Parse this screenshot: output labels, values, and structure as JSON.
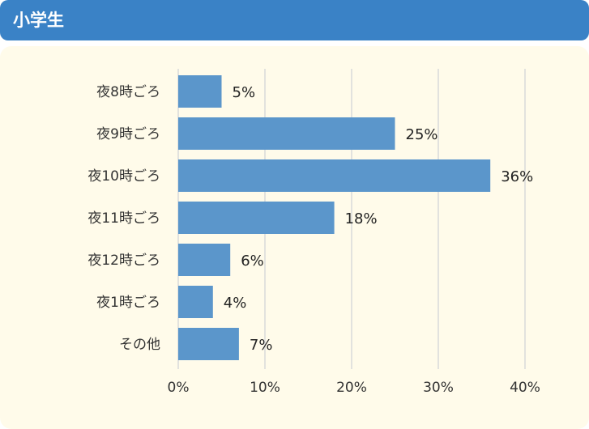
{
  "header": {
    "title": "小学生"
  },
  "chart_data": {
    "type": "bar",
    "orientation": "horizontal",
    "categories": [
      "夜8時ごろ",
      "夜9時ごろ",
      "夜10時ごろ",
      "夜11時ごろ",
      "夜12時ごろ",
      "夜1時ごろ",
      "その他"
    ],
    "values": [
      5,
      25,
      36,
      18,
      6,
      4,
      7
    ],
    "value_labels": [
      "5%",
      "25%",
      "36%",
      "18%",
      "6%",
      "4%",
      "7%"
    ],
    "xlim": [
      0,
      40
    ],
    "x_ticks": [
      0,
      10,
      20,
      30,
      40
    ],
    "x_tick_labels": [
      "0%",
      "10%",
      "20%",
      "30%",
      "40%"
    ],
    "grid": "vertical",
    "colors": {
      "bar": "#5b96cb",
      "grid": "#d9d9d9",
      "header": "#3a82c6",
      "panel": "#fffbea"
    }
  }
}
